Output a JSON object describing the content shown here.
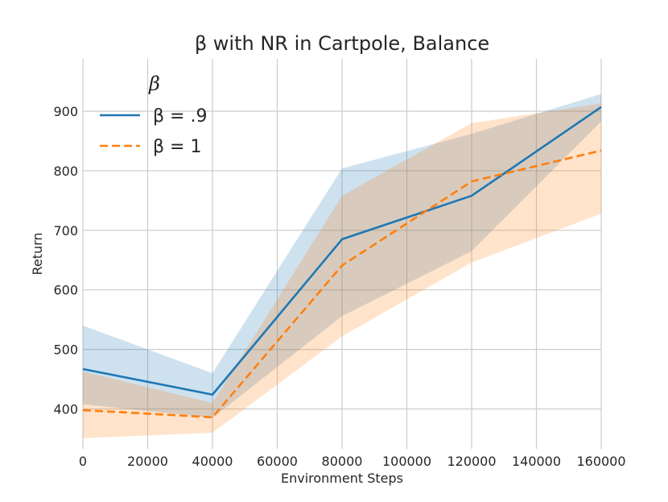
{
  "chart_data": {
    "type": "line",
    "title": "β with NR in Cartpole, Balance",
    "xlabel": "Environment Steps",
    "ylabel": "Return",
    "xlim": [
      0,
      160000
    ],
    "ylim": [
      333,
      988
    ],
    "x_ticks": [
      0,
      20000,
      40000,
      60000,
      80000,
      100000,
      120000,
      140000,
      160000
    ],
    "y_ticks": [
      400,
      500,
      600,
      700,
      800,
      900
    ],
    "grid": true,
    "legend_title": "β",
    "legend_position": "upper-left",
    "series": [
      {
        "name": "β = .9",
        "color": "#1f77b4",
        "line_style": "solid",
        "x": [
          0,
          40000,
          80000,
          120000,
          160000
        ],
        "y": [
          467,
          424,
          685,
          758,
          907
        ],
        "lower": [
          408,
          385,
          556,
          665,
          883
        ],
        "upper": [
          540,
          460,
          804,
          862,
          929
        ]
      },
      {
        "name": "β = 1",
        "color": "#ff7f0e",
        "line_style": "dashed",
        "x": [
          0,
          40000,
          80000,
          120000,
          160000
        ],
        "y": [
          398,
          386,
          641,
          782,
          834
        ],
        "lower": [
          351,
          360,
          522,
          646,
          728
        ],
        "upper": [
          463,
          410,
          758,
          880,
          913
        ]
      }
    ]
  }
}
